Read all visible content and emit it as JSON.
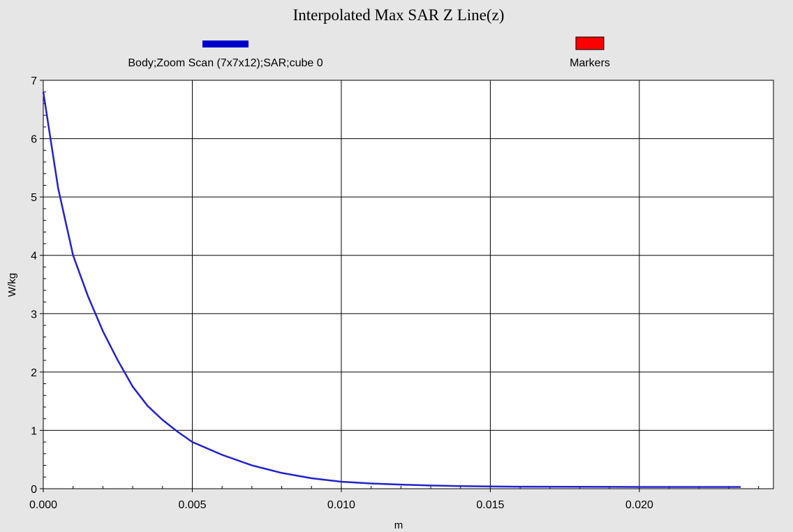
{
  "chart_data": {
    "type": "line",
    "title": "Interpolated Max SAR Z Line(z)",
    "xlabel": "m",
    "ylabel": "W/kg",
    "xlim": [
      0.0,
      0.0245
    ],
    "ylim": [
      0,
      7
    ],
    "grid": true,
    "legend_placement": "top",
    "x_ticks": [
      0.0,
      0.005,
      0.01,
      0.015,
      0.02
    ],
    "x_tick_labels": [
      "0.000",
      "0.005",
      "0.010",
      "0.015",
      "0.020"
    ],
    "y_ticks": [
      0,
      1,
      2,
      3,
      4,
      5,
      6,
      7
    ],
    "y_tick_labels": [
      "0",
      "1",
      "2",
      "3",
      "4",
      "5",
      "6",
      "7"
    ],
    "legend": [
      {
        "name": "Body;Zoom Scan (7x7x12);SAR;cube 0",
        "color": "#0000cc"
      },
      {
        "name": "Markers",
        "color": "#ff0000"
      }
    ],
    "series": [
      {
        "name": "Body;Zoom Scan (7x7x12);SAR;cube 0",
        "color": "#2222cc",
        "x": [
          0.0,
          0.0005,
          0.001,
          0.0015,
          0.002,
          0.0025,
          0.003,
          0.0035,
          0.004,
          0.0045,
          0.005,
          0.006,
          0.007,
          0.008,
          0.009,
          0.01,
          0.011,
          0.012,
          0.013,
          0.014,
          0.015,
          0.016,
          0.018,
          0.02,
          0.0225,
          0.0234
        ],
        "values": [
          6.8,
          5.15,
          4.0,
          3.3,
          2.7,
          2.2,
          1.75,
          1.42,
          1.18,
          0.98,
          0.8,
          0.58,
          0.4,
          0.27,
          0.18,
          0.12,
          0.09,
          0.07,
          0.055,
          0.045,
          0.04,
          0.035,
          0.033,
          0.03,
          0.03,
          0.03
        ]
      }
    ]
  }
}
